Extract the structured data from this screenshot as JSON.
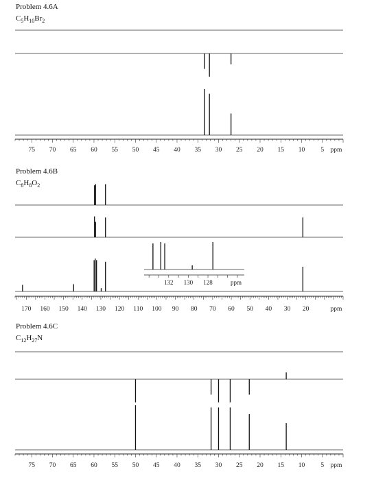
{
  "problems": [
    {
      "title": "Problem 4.6A",
      "formula": [
        [
          "C",
          ""
        ],
        [
          "5",
          "sub"
        ],
        [
          "H",
          ""
        ],
        [
          "10",
          "sub"
        ],
        [
          "Br",
          ""
        ],
        [
          "2",
          "sub"
        ]
      ]
    },
    {
      "title": "Problem 4.6B",
      "formula": [
        [
          "C",
          ""
        ],
        [
          "8",
          "sub"
        ],
        [
          "H",
          ""
        ],
        [
          "8",
          "sub"
        ],
        [
          "O",
          ""
        ],
        [
          "2",
          "sub"
        ]
      ]
    },
    {
      "title": "Problem 4.6C",
      "formula": [
        [
          "C",
          ""
        ],
        [
          "12",
          "sub"
        ],
        [
          "H",
          ""
        ],
        [
          "27",
          "sub"
        ],
        [
          "N",
          ""
        ]
      ]
    }
  ],
  "chart_data": [
    {
      "type": "line",
      "title": "Problem 4.6A",
      "subtitle": "C5H10Br2",
      "xlabel": "ppm",
      "xlim": [
        79,
        0
      ],
      "tick_labels": [
        "75",
        "70",
        "65",
        "60",
        "55",
        "50",
        "45",
        "40",
        "35",
        "30",
        "25",
        "20",
        "15",
        "10",
        "5"
      ],
      "unit_label": "ppm",
      "traces": [
        {
          "peaks": []
        },
        {
          "peaks": [
            {
              "x": 33.4,
              "h": -0.5
            },
            {
              "x": 32.2,
              "h": -0.75
            },
            {
              "x": 27.0,
              "h": -0.35
            }
          ]
        },
        {
          "peaks": [
            {
              "x": 33.4,
              "h": 1.0
            },
            {
              "x": 32.2,
              "h": 0.9
            },
            {
              "x": 27.0,
              "h": 0.47
            }
          ]
        }
      ]
    },
    {
      "type": "line",
      "title": "Problem 4.6B",
      "subtitle": "C8H8O2",
      "xlabel": "ppm",
      "xlim": [
        176,
        0
      ],
      "tick_labels": [
        "170",
        "160",
        "150",
        "140",
        "130",
        "120",
        "110",
        "100",
        "90",
        "80",
        "70",
        "60",
        "50",
        "40",
        "30",
        "20"
      ],
      "unit_label": "ppm",
      "traces": [
        {
          "peaks": [
            {
              "x": 133.4,
              "h": 0.9
            },
            {
              "x": 132.8,
              "h": 0.95
            },
            {
              "x": 127.5,
              "h": 0.95
            }
          ]
        },
        {
          "peaks": [
            {
              "x": 133.4,
              "h": 0.95
            },
            {
              "x": 132.8,
              "h": 0.7
            },
            {
              "x": 127.5,
              "h": 0.9
            },
            {
              "x": 21.6,
              "h": 0.9
            }
          ]
        },
        {
          "peaks": [
            {
              "x": 172.0,
              "h": 0.2
            },
            {
              "x": 144.6,
              "h": 0.22
            },
            {
              "x": 133.6,
              "h": 0.95
            },
            {
              "x": 133.0,
              "h": 1.0
            },
            {
              "x": 132.3,
              "h": 0.95
            },
            {
              "x": 129.8,
              "h": 0.1
            },
            {
              "x": 127.5,
              "h": 0.9
            },
            {
              "x": 21.6,
              "h": 0.75
            }
          ]
        }
      ],
      "inset": {
        "xlim": [
          134.5,
          124.3
        ],
        "tick_labels": [
          "132",
          "130",
          "128"
        ],
        "unit_label": "ppm",
        "peaks": [
          {
            "x": 133.6,
            "h": 0.95
          },
          {
            "x": 132.8,
            "h": 1.0
          },
          {
            "x": 132.4,
            "h": 0.95
          },
          {
            "x": 129.6,
            "h": 0.15
          },
          {
            "x": 127.5,
            "h": 1.0
          }
        ]
      }
    },
    {
      "type": "line",
      "title": "Problem 4.6C",
      "subtitle": "C12H27N",
      "xlabel": "ppm",
      "xlim": [
        79,
        0
      ],
      "tick_labels": [
        "75",
        "70",
        "65",
        "60",
        "55",
        "50",
        "45",
        "40",
        "35",
        "30",
        "25",
        "20",
        "15",
        "10",
        "5"
      ],
      "unit_label": "ppm",
      "traces": [
        {
          "peaks": []
        },
        {
          "peaks": [
            {
              "x": 50.0,
              "h": -0.75
            },
            {
              "x": 31.8,
              "h": -0.5
            },
            {
              "x": 30.0,
              "h": -0.75
            },
            {
              "x": 27.2,
              "h": -0.75
            },
            {
              "x": 22.6,
              "h": -0.5
            },
            {
              "x": 13.7,
              "h": 0.45
            }
          ]
        },
        {
          "peaks": [
            {
              "x": 50.0,
              "h": 1.0
            },
            {
              "x": 31.8,
              "h": 0.95
            },
            {
              "x": 30.0,
              "h": 0.95
            },
            {
              "x": 27.2,
              "h": 0.95
            },
            {
              "x": 22.6,
              "h": 0.8
            },
            {
              "x": 13.7,
              "h": 0.6
            }
          ]
        }
      ]
    }
  ]
}
